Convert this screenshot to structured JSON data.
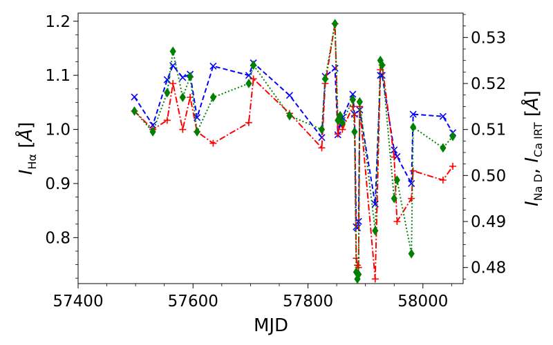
{
  "chart_data": {
    "type": "line",
    "xlabel": "MJD",
    "ylabel_left": "I_Hα [Å]",
    "ylabel_right": "I_NaD, I_CaIRT [Å]",
    "xlim": [
      57400,
      58070
    ],
    "ylim_left": [
      0.715,
      1.215
    ],
    "ylim_right": [
      0.4765,
      0.5353
    ],
    "xticks": [
      57400,
      57600,
      57800,
      58000
    ],
    "yticks_left": [
      0.8,
      0.9,
      1.0,
      1.1,
      1.2
    ],
    "yticks_right": [
      0.48,
      0.49,
      0.5,
      0.51,
      0.52,
      0.53
    ],
    "grid": false,
    "legend": "none",
    "series": [
      {
        "axis": "left",
        "color": "#0000ff",
        "linestyle": "dashed",
        "marker": "x",
        "x": [
          57498,
          57530,
          57555,
          57565,
          57582,
          57595,
          57607,
          57635,
          57697,
          57705,
          57768,
          57824,
          57830,
          57847,
          57852,
          57856,
          57860,
          57878,
          57881,
          57884,
          57886,
          57888,
          57890,
          57917,
          57926,
          57929,
          57950,
          57955,
          57980,
          57983,
          58035,
          58052
        ],
        "y": [
          1.06,
          1.008,
          1.092,
          1.118,
          1.096,
          1.102,
          1.022,
          1.117,
          1.1,
          1.123,
          1.063,
          0.985,
          1.098,
          1.113,
          0.99,
          1.008,
          1.022,
          1.065,
          1.028,
          0.82,
          0.818,
          0.83,
          1.036,
          0.862,
          1.1,
          1.1,
          0.962,
          0.95,
          0.9,
          1.028,
          1.024,
          0.994
        ]
      },
      {
        "axis": "right",
        "color": "#ff0000",
        "linestyle": "dashdot",
        "marker": "+",
        "x": [
          57498,
          57530,
          57555,
          57565,
          57582,
          57595,
          57607,
          57635,
          57697,
          57705,
          57768,
          57824,
          57830,
          57847,
          57852,
          57856,
          57860,
          57878,
          57881,
          57884,
          57886,
          57888,
          57890,
          57917,
          57926,
          57929,
          57950,
          57955,
          57980,
          57983,
          58035,
          58052
        ],
        "y": [
          0.514,
          0.51,
          0.512,
          0.52,
          0.51,
          0.517,
          0.5095,
          0.507,
          0.5115,
          0.521,
          0.5135,
          0.506,
          0.52,
          0.533,
          0.509,
          0.512,
          0.51,
          0.515,
          0.513,
          0.482,
          0.4805,
          0.48,
          0.515,
          0.4775,
          0.523,
          0.524,
          0.504,
          0.49,
          0.495,
          0.501,
          0.499,
          0.502
        ]
      },
      {
        "axis": "right",
        "color": "#008000",
        "linestyle": "dotted",
        "marker": "d",
        "x": [
          57498,
          57530,
          57555,
          57565,
          57582,
          57595,
          57607,
          57635,
          57697,
          57705,
          57768,
          57824,
          57830,
          57847,
          57852,
          57856,
          57860,
          57878,
          57881,
          57884,
          57886,
          57888,
          57890,
          57917,
          57926,
          57929,
          57950,
          57955,
          57980,
          57983,
          58035,
          58052
        ],
        "y": [
          0.514,
          0.5095,
          0.518,
          0.527,
          0.517,
          0.5215,
          0.5095,
          0.517,
          0.52,
          0.524,
          0.513,
          0.51,
          0.521,
          0.533,
          0.512,
          0.513,
          0.5115,
          0.5165,
          0.5095,
          0.479,
          0.4775,
          0.4785,
          0.516,
          0.488,
          0.525,
          0.524,
          0.495,
          0.499,
          0.483,
          0.5105,
          0.506,
          0.5085
        ]
      }
    ]
  }
}
